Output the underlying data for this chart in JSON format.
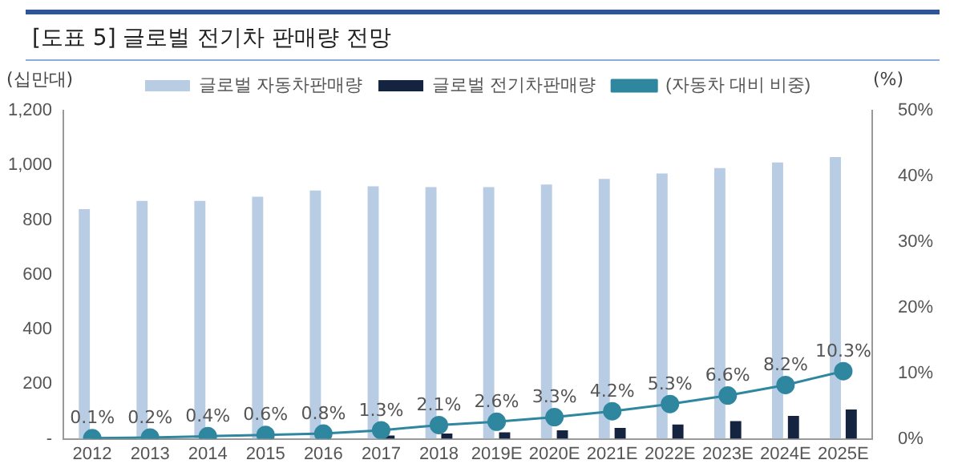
{
  "chart_data": {
    "type": "bar",
    "title": "[도표 5] 글로벌 전기차 판매량 전망",
    "ylabel": "(십만대)",
    "y2label": "(%)",
    "categories": [
      "2012",
      "2013",
      "2014",
      "2015",
      "2016",
      "2017",
      "2018",
      "2019E",
      "2020E",
      "2021E",
      "2022E",
      "2023E",
      "2024E",
      "2025E"
    ],
    "series": [
      {
        "name": "글로벌 자동차판매량",
        "color": "#b8cce4",
        "values": [
          840,
          870,
          870,
          885,
          908,
          923,
          920,
          920,
          930,
          950,
          970,
          990,
          1010,
          1030
        ]
      },
      {
        "name": "글로벌 전기차판매량",
        "color": "#14233f",
        "values": [
          null,
          null,
          null,
          null,
          null,
          12,
          19,
          24,
          31,
          40,
          52,
          65,
          84,
          107
        ]
      },
      {
        "name": "(자동차 대비 비중)",
        "type": "line",
        "axis": "y2",
        "color": "#2e869f",
        "marker": "circle",
        "value_labels": [
          "0.1%",
          "0.2%",
          "0.4%",
          "0.6%",
          "0.8%",
          "1.3%",
          "2.1%",
          "2.6%",
          "3.3%",
          "4.2%",
          "5.3%",
          "6.6%",
          "8.2%",
          "10.3%"
        ],
        "values": [
          0.1,
          0.2,
          0.4,
          0.6,
          0.8,
          1.3,
          2.1,
          2.6,
          3.3,
          4.2,
          5.3,
          6.6,
          8.2,
          10.3
        ]
      }
    ],
    "ylim": [
      0,
      1200
    ],
    "yticks": [
      {
        "value": 0,
        "label": "-"
      },
      200,
      400,
      600,
      800,
      {
        "value": 1000,
        "label": "1,000"
      },
      {
        "value": 1200,
        "label": "1,200"
      }
    ],
    "y2lim": [
      0,
      50
    ],
    "y2ticks": [
      {
        "value": 0,
        "label": "0%"
      },
      {
        "value": 10,
        "label": "10%"
      },
      {
        "value": 20,
        "label": "20%"
      },
      {
        "value": 30,
        "label": "30%"
      },
      {
        "value": 40,
        "label": "40%"
      },
      {
        "value": 50,
        "label": "50%"
      }
    ],
    "legend": "top",
    "grid": false
  }
}
